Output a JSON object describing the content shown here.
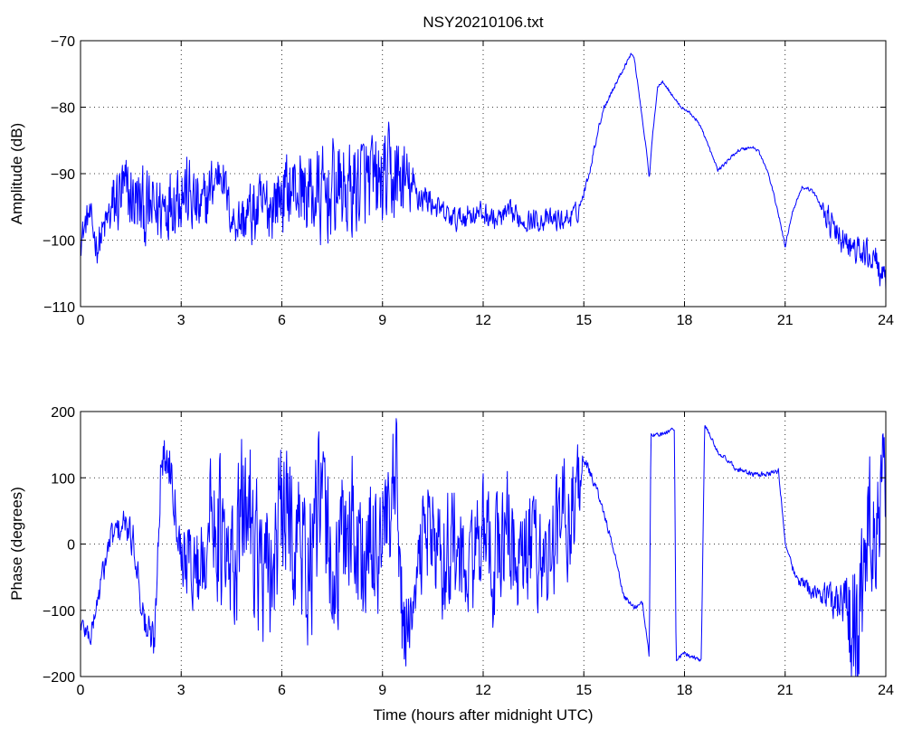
{
  "title": "NSY20210106.txt",
  "colors": {
    "series": "#0000ff",
    "axes": "#000000",
    "background": "#ffffff"
  },
  "chart_data": [
    {
      "type": "line",
      "ylabel": "Amplitude (dB)",
      "xlabel": "",
      "xlim": [
        0,
        24
      ],
      "ylim": [
        -110,
        -70
      ],
      "xticks": [
        0,
        3,
        6,
        9,
        12,
        15,
        18,
        21,
        24
      ],
      "yticks": [
        -110,
        -100,
        -90,
        -80,
        -70
      ],
      "ytick_labels": [
        "−110",
        "−100",
        "−90",
        "−80",
        "−70"
      ],
      "grid": true,
      "series": [
        {
          "profile": [
            [
              0,
              -100
            ],
            [
              0.25,
              -96
            ],
            [
              0.5,
              -101
            ],
            [
              0.8,
              -97
            ],
            [
              1.2,
              -93
            ],
            [
              1.6,
              -94
            ],
            [
              2.0,
              -96
            ],
            [
              2.4,
              -95
            ],
            [
              2.8,
              -93
            ],
            [
              3.0,
              -92
            ],
            [
              3.3,
              -94
            ],
            [
              3.6,
              -96
            ],
            [
              3.9,
              -92
            ],
            [
              4.2,
              -89
            ],
            [
              4.5,
              -97
            ],
            [
              4.8,
              -97
            ],
            [
              5.2,
              -96
            ],
            [
              5.6,
              -95
            ],
            [
              6.0,
              -93
            ],
            [
              6.4,
              -92
            ],
            [
              6.8,
              -93
            ],
            [
              7.2,
              -94
            ],
            [
              7.6,
              -92
            ],
            [
              8.0,
              -93
            ],
            [
              8.4,
              -91
            ],
            [
              8.8,
              -92
            ],
            [
              9.2,
              -91
            ],
            [
              9.6,
              -91
            ],
            [
              10.0,
              -93
            ],
            [
              10.4,
              -94
            ],
            [
              10.8,
              -96
            ],
            [
              11.2,
              -97
            ],
            [
              11.6,
              -96
            ],
            [
              12.0,
              -96
            ],
            [
              12.4,
              -97
            ],
            [
              12.8,
              -96
            ],
            [
              13.2,
              -97
            ],
            [
              13.6,
              -97
            ],
            [
              14.0,
              -97
            ],
            [
              14.4,
              -97
            ],
            [
              14.8,
              -96
            ],
            [
              15.0,
              -93
            ],
            [
              15.2,
              -89
            ],
            [
              15.4,
              -84
            ],
            [
              15.6,
              -80
            ],
            [
              15.8,
              -78
            ],
            [
              16.0,
              -76
            ],
            [
              16.2,
              -74
            ],
            [
              16.4,
              -72
            ],
            [
              16.5,
              -72.5
            ],
            [
              16.7,
              -80
            ],
            [
              16.9,
              -88
            ],
            [
              16.95,
              -91
            ],
            [
              17.05,
              -84
            ],
            [
              17.2,
              -77
            ],
            [
              17.35,
              -76
            ],
            [
              17.6,
              -78
            ],
            [
              17.9,
              -80
            ],
            [
              18.2,
              -81
            ],
            [
              18.5,
              -83
            ],
            [
              18.8,
              -87
            ],
            [
              19.0,
              -89.5
            ],
            [
              19.3,
              -88
            ],
            [
              19.6,
              -86.5
            ],
            [
              20.0,
              -86
            ],
            [
              20.2,
              -86.5
            ],
            [
              20.5,
              -90
            ],
            [
              20.8,
              -96
            ],
            [
              21.0,
              -101
            ],
            [
              21.2,
              -96
            ],
            [
              21.5,
              -92
            ],
            [
              21.8,
              -92.5
            ],
            [
              22.1,
              -95
            ],
            [
              22.5,
              -99
            ],
            [
              22.9,
              -101
            ],
            [
              23.3,
              -102
            ],
            [
              23.7,
              -103
            ],
            [
              24.0,
              -107
            ]
          ],
          "noise_envelope": [
            [
              0,
              3
            ],
            [
              0.8,
              4
            ],
            [
              1.0,
              8
            ],
            [
              2.8,
              8
            ],
            [
              3.0,
              9
            ],
            [
              4.5,
              4
            ],
            [
              5.0,
              7
            ],
            [
              6.5,
              8
            ],
            [
              7.0,
              10
            ],
            [
              9.5,
              10
            ],
            [
              10.0,
              4
            ],
            [
              10.5,
              2.5
            ],
            [
              14.8,
              2.2
            ],
            [
              15.0,
              0.8
            ],
            [
              16.5,
              0.3
            ],
            [
              22.0,
              0.4
            ],
            [
              22.3,
              3
            ],
            [
              24.0,
              3
            ]
          ]
        }
      ]
    },
    {
      "type": "line",
      "ylabel": "Phase (degrees)",
      "xlabel": "Time (hours after midnight UTC)",
      "xlim": [
        0,
        24
      ],
      "ylim": [
        -200,
        200
      ],
      "xticks": [
        0,
        3,
        6,
        9,
        12,
        15,
        18,
        21,
        24
      ],
      "yticks": [
        -200,
        -100,
        0,
        100,
        200
      ],
      "ytick_labels": [
        "−200",
        "−100",
        "0",
        "100",
        "200"
      ],
      "grid": true,
      "series": [
        {
          "profile": [
            [
              0,
              -120
            ],
            [
              0.3,
              -140
            ],
            [
              0.6,
              -60
            ],
            [
              0.9,
              10
            ],
            [
              1.3,
              30
            ],
            [
              1.6,
              0
            ],
            [
              1.9,
              -120
            ],
            [
              2.2,
              -150
            ],
            [
              2.4,
              130
            ],
            [
              2.7,
              120
            ],
            [
              3.0,
              -10
            ],
            [
              3.5,
              -40
            ],
            [
              4.0,
              60
            ],
            [
              4.4,
              -60
            ],
            [
              5.0,
              80
            ],
            [
              5.5,
              -80
            ],
            [
              6.0,
              40
            ],
            [
              6.4,
              20
            ],
            [
              6.8,
              -40
            ],
            [
              7.2,
              60
            ],
            [
              7.6,
              -60
            ],
            [
              8.0,
              50
            ],
            [
              8.5,
              -40
            ],
            [
              8.9,
              20
            ],
            [
              9.2,
              0
            ],
            [
              9.4,
              80
            ],
            [
              9.6,
              -130
            ],
            [
              9.9,
              -110
            ],
            [
              10.3,
              50
            ],
            [
              10.7,
              -30
            ],
            [
              11.1,
              10
            ],
            [
              11.5,
              -60
            ],
            [
              11.9,
              20
            ],
            [
              12.3,
              -40
            ],
            [
              12.7,
              30
            ],
            [
              13.1,
              -50
            ],
            [
              13.5,
              10
            ],
            [
              13.9,
              -30
            ],
            [
              14.3,
              30
            ],
            [
              14.7,
              60
            ],
            [
              15.0,
              130
            ],
            [
              15.4,
              80
            ],
            [
              15.8,
              10
            ],
            [
              16.2,
              -80
            ],
            [
              16.5,
              -95
            ],
            [
              16.75,
              -90
            ],
            [
              16.95,
              -170
            ],
            [
              17.0,
              165
            ],
            [
              17.3,
              165
            ],
            [
              17.7,
              175
            ],
            [
              17.75,
              -175
            ],
            [
              18.0,
              -165
            ],
            [
              18.5,
              -175
            ],
            [
              18.6,
              180
            ],
            [
              19.0,
              140
            ],
            [
              19.5,
              115
            ],
            [
              20.0,
              105
            ],
            [
              20.5,
              105
            ],
            [
              20.8,
              110
            ],
            [
              21.0,
              5
            ],
            [
              21.3,
              -50
            ],
            [
              21.8,
              -70
            ],
            [
              22.3,
              -80
            ],
            [
              22.8,
              -90
            ],
            [
              23.2,
              -150
            ],
            [
              23.5,
              30
            ],
            [
              23.8,
              50
            ],
            [
              24.0,
              110
            ]
          ],
          "noise_envelope": [
            [
              0,
              20
            ],
            [
              2.0,
              40
            ],
            [
              3.0,
              60
            ],
            [
              4.2,
              160
            ],
            [
              9.5,
              160
            ],
            [
              9.9,
              40
            ],
            [
              10.2,
              120
            ],
            [
              14.8,
              120
            ],
            [
              15.0,
              10
            ],
            [
              16.9,
              4
            ],
            [
              21.0,
              6
            ],
            [
              22.0,
              20
            ],
            [
              22.8,
              60
            ],
            [
              23.0,
              150
            ],
            [
              24.0,
              120
            ]
          ]
        }
      ]
    }
  ]
}
